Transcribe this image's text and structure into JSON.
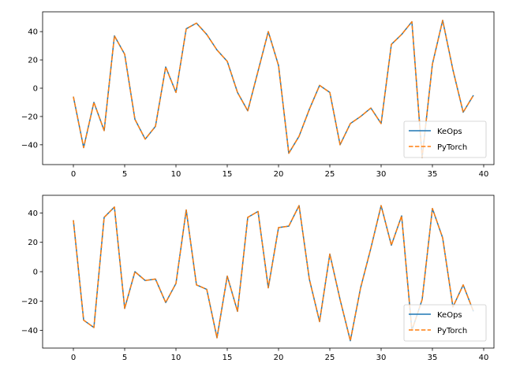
{
  "chart_data": [
    {
      "type": "line",
      "xlim": [
        -3,
        41
      ],
      "ylim": [
        -54,
        54
      ],
      "x_ticks": [
        0,
        5,
        10,
        15,
        20,
        25,
        30,
        35,
        40
      ],
      "y_ticks": [
        -40,
        -20,
        0,
        20,
        40
      ],
      "legend_position": "lower-right",
      "x": [
        0,
        1,
        2,
        3,
        4,
        5,
        6,
        7,
        8,
        9,
        10,
        11,
        12,
        13,
        14,
        15,
        16,
        17,
        18,
        19,
        20,
        21,
        22,
        23,
        24,
        25,
        26,
        27,
        28,
        29,
        30,
        31,
        32,
        33,
        34,
        35,
        36,
        37,
        38,
        39
      ],
      "series": [
        {
          "name": "KeOps",
          "color": "#1f77b4",
          "style": "solid",
          "values": [
            -6,
            -42,
            -10,
            -30,
            37,
            24,
            -22,
            -36,
            -27,
            15,
            -3,
            42,
            46,
            38,
            27,
            19,
            -3,
            -16,
            12,
            40,
            16,
            -46,
            -34,
            -15,
            2,
            -3,
            -40,
            -25,
            -20,
            -14,
            -25,
            31,
            38,
            47,
            -49,
            17,
            48,
            13,
            -17,
            -5
          ]
        },
        {
          "name": "PyTorch",
          "color": "#ff7f0e",
          "style": "dashed",
          "values": [
            -6,
            -42,
            -10,
            -30,
            37,
            24,
            -22,
            -36,
            -27,
            15,
            -3,
            42,
            46,
            38,
            27,
            19,
            -3,
            -16,
            12,
            40,
            16,
            -46,
            -34,
            -15,
            2,
            -3,
            -40,
            -25,
            -20,
            -14,
            -25,
            31,
            38,
            47,
            -49,
            17,
            48,
            13,
            -17,
            -5
          ]
        }
      ]
    },
    {
      "type": "line",
      "xlim": [
        -3,
        41
      ],
      "ylim": [
        -52,
        52
      ],
      "x_ticks": [
        0,
        5,
        10,
        15,
        20,
        25,
        30,
        35,
        40
      ],
      "y_ticks": [
        -40,
        -20,
        0,
        20,
        40
      ],
      "legend_position": "lower-right",
      "x": [
        0,
        1,
        2,
        3,
        4,
        5,
        6,
        7,
        8,
        9,
        10,
        11,
        12,
        13,
        14,
        15,
        16,
        17,
        18,
        19,
        20,
        21,
        22,
        23,
        24,
        25,
        26,
        27,
        28,
        29,
        30,
        31,
        32,
        33,
        34,
        35,
        36,
        37,
        38,
        39
      ],
      "series": [
        {
          "name": "KeOps",
          "color": "#1f77b4",
          "style": "solid",
          "values": [
            35,
            -33,
            -38,
            37,
            44,
            -25,
            0,
            -6,
            -5,
            -21,
            -8,
            42,
            -9,
            -12,
            -45,
            -3,
            -27,
            37,
            41,
            -11,
            30,
            31,
            45,
            -5,
            -34,
            12,
            -19,
            -47,
            -11,
            16,
            45,
            18,
            38,
            -40,
            -19,
            43,
            23,
            -24,
            -9,
            -27
          ]
        },
        {
          "name": "PyTorch",
          "color": "#ff7f0e",
          "style": "dashed",
          "values": [
            35,
            -33,
            -38,
            37,
            44,
            -25,
            0,
            -6,
            -5,
            -21,
            -8,
            42,
            -9,
            -12,
            -45,
            -3,
            -27,
            37,
            41,
            -11,
            30,
            31,
            45,
            -5,
            -34,
            12,
            -19,
            -47,
            -11,
            16,
            45,
            18,
            38,
            -40,
            -19,
            43,
            23,
            -24,
            -9,
            -27
          ]
        }
      ]
    }
  ]
}
